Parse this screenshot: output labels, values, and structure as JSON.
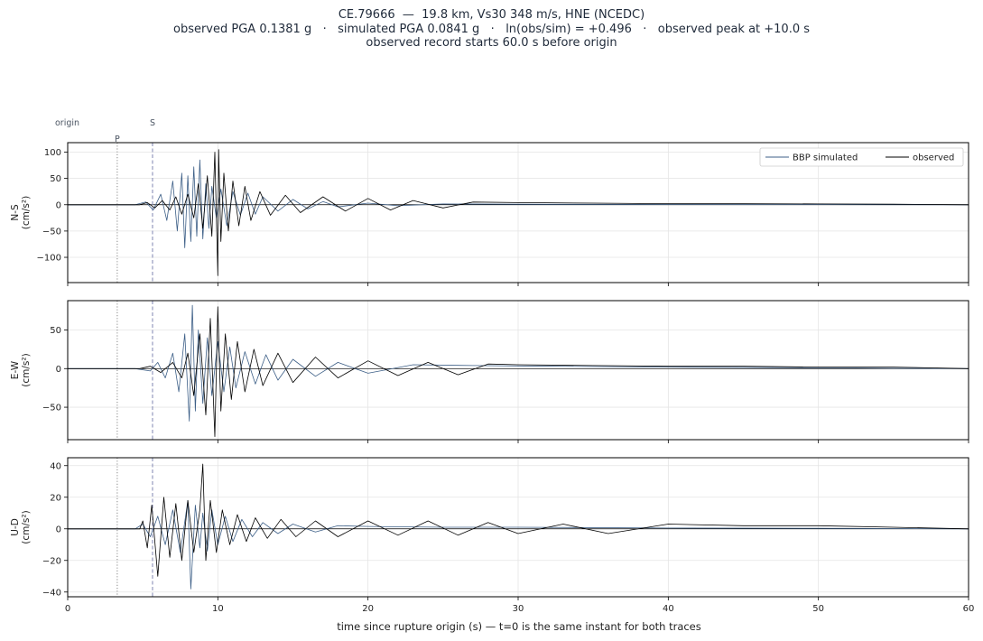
{
  "header": {
    "line1": "CE.79666  —  19.8 km, Vs30 348 m/s, HNE (NCEDC)",
    "line2": "observed PGA 0.1381 g   ·   simulated PGA 0.0841 g   ·   ln(obs/sim) = +0.496   ·   observed peak at +10.0 s",
    "line3": "observed record starts 60.0 s before origin"
  },
  "chart_data": {
    "type": "line",
    "xlabel": "time since rupture origin (s)   —   t=0 is the same instant for both traces",
    "xlim": [
      0,
      60
    ],
    "xticks": [
      0,
      10,
      20,
      30,
      40,
      50,
      60
    ],
    "grid": true,
    "legend": {
      "placement": "top-right",
      "entries": [
        "BBP simulated",
        "observed"
      ]
    },
    "markers": [
      {
        "label": "origin",
        "t": 0
      },
      {
        "label": "P",
        "t": 3.3
      },
      {
        "label": "S",
        "t": 5.65
      }
    ],
    "colors": {
      "simulated": "#3d5f87",
      "observed": "#000000",
      "p_line": "#888888",
      "s_line": "#8a90b8"
    },
    "panels": [
      {
        "component": "N-S",
        "ylabel_line1": "N-S",
        "ylabel_line2": "(cm/s²)",
        "ylim": [
          -148,
          118
        ],
        "yticks": [
          100,
          50,
          0,
          -50,
          -100
        ],
        "series": [
          {
            "name": "BBP simulated",
            "x": [
              0,
              4.5,
              5.2,
              5.7,
              6.2,
              6.6,
              7.0,
              7.3,
              7.6,
              7.8,
              8.0,
              8.2,
              8.4,
              8.6,
              8.8,
              9.0,
              9.2,
              9.4,
              9.6,
              9.9,
              10.2,
              10.6,
              11.0,
              11.5,
              12.0,
              12.5,
              13.0,
              14.0,
              15.0,
              16.0,
              17.0,
              18.0,
              20.0,
              22.0,
              25.0,
              30.0,
              40.0,
              50.0,
              60.0
            ],
            "y": [
              0,
              0,
              5,
              -10,
              20,
              -30,
              45,
              -50,
              60,
              -82,
              55,
              -70,
              72,
              -60,
              85,
              -65,
              40,
              -45,
              35,
              -25,
              30,
              -40,
              25,
              -20,
              22,
              -18,
              15,
              -12,
              10,
              -8,
              6,
              -4,
              3,
              -2,
              1.5,
              1,
              0.5,
              0.3,
              0
            ]
          },
          {
            "name": "observed",
            "x": [
              0,
              4.8,
              5.3,
              5.8,
              6.3,
              6.8,
              7.2,
              7.6,
              8.0,
              8.4,
              8.7,
              9.0,
              9.3,
              9.6,
              9.8,
              10.0,
              10.05,
              10.2,
              10.4,
              10.7,
              11.0,
              11.4,
              11.8,
              12.2,
              12.8,
              13.5,
              14.5,
              15.5,
              17.0,
              18.5,
              20.0,
              21.5,
              23.0,
              25.0,
              27.0,
              30.0,
              35.0,
              40.0,
              45.0,
              50.0,
              55.0,
              60.0
            ],
            "y": [
              0,
              0,
              4,
              -6,
              8,
              -10,
              15,
              -18,
              20,
              -25,
              40,
              -45,
              55,
              -60,
              100,
              -135,
              105,
              -70,
              60,
              -50,
              45,
              -40,
              35,
              -30,
              25,
              -20,
              18,
              -15,
              15,
              -12,
              12,
              -10,
              8,
              -6,
              5,
              4,
              3,
              2,
              2,
              1.5,
              1,
              0
            ]
          }
        ]
      },
      {
        "component": "E-W",
        "ylabel_line1": "E-W",
        "ylabel_line2": "(cm/s²)",
        "ylim": [
          -92,
          88
        ],
        "yticks": [
          50,
          0,
          -50
        ],
        "series": [
          {
            "name": "BBP simulated",
            "x": [
              0,
              4.5,
              5.5,
              6.0,
              6.5,
              7.0,
              7.4,
              7.8,
              8.1,
              8.3,
              8.5,
              8.7,
              9.0,
              9.3,
              9.6,
              10.0,
              10.4,
              10.8,
              11.2,
              11.8,
              12.5,
              13.2,
              14.0,
              15.0,
              16.5,
              18.0,
              20.0,
              23.0,
              27.0,
              32.0,
              40.0,
              50.0,
              60.0
            ],
            "y": [
              0,
              0,
              -3,
              8,
              -12,
              20,
              -30,
              45,
              -68,
              82,
              -55,
              50,
              -45,
              40,
              -35,
              35,
              -30,
              28,
              -25,
              22,
              -20,
              18,
              -15,
              12,
              -10,
              8,
              -6,
              5,
              4,
              3,
              2,
              1,
              0
            ]
          },
          {
            "name": "observed",
            "x": [
              0,
              4.8,
              5.5,
              6.2,
              7.0,
              7.6,
              8.0,
              8.4,
              8.8,
              9.2,
              9.5,
              9.8,
              10.0,
              10.2,
              10.5,
              10.9,
              11.3,
              11.8,
              12.4,
              13.0,
              14.0,
              15.0,
              16.5,
              18.0,
              20.0,
              22.0,
              24.0,
              26.0,
              28.0,
              30.0,
              35.0,
              40.0,
              45.0,
              50.0,
              55.0,
              60.0
            ],
            "y": [
              0,
              0,
              3,
              -5,
              8,
              -12,
              20,
              -35,
              45,
              -60,
              65,
              -88,
              80,
              -55,
              45,
              -40,
              35,
              -30,
              25,
              -22,
              20,
              -18,
              15,
              -12,
              10,
              -9,
              8,
              -8,
              6,
              5,
              4,
              3,
              3,
              2,
              2,
              0
            ]
          }
        ]
      },
      {
        "component": "U-D",
        "ylabel_line1": "U-D",
        "ylabel_line2": "(cm/s²)",
        "ylim": [
          -43,
          45
        ],
        "yticks": [
          40,
          20,
          0,
          -20,
          -40
        ],
        "series": [
          {
            "name": "BBP simulated",
            "x": [
              0,
              4.5,
              5.0,
              5.5,
              6.0,
              6.5,
              7.0,
              7.5,
              8.0,
              8.2,
              8.5,
              8.8,
              9.0,
              9.3,
              9.6,
              10.0,
              10.5,
              11.0,
              11.6,
              12.3,
              13.0,
              14.0,
              15.0,
              16.5,
              18.0,
              20.0,
              25.0,
              30.0,
              40.0,
              50.0,
              60.0
            ],
            "y": [
              0,
              0,
              3,
              -5,
              8,
              -10,
              12,
              -15,
              18,
              -38,
              15,
              -12,
              10,
              -14,
              12,
              -10,
              8,
              -8,
              6,
              -5,
              4,
              -3,
              3,
              -2,
              2,
              1.5,
              1,
              1,
              0.5,
              0.3,
              0
            ]
          },
          {
            "name": "observed",
            "x": [
              0,
              4.8,
              5.0,
              5.3,
              5.6,
              6.0,
              6.4,
              6.8,
              7.2,
              7.6,
              8.0,
              8.4,
              8.8,
              9.0,
              9.2,
              9.5,
              9.9,
              10.3,
              10.8,
              11.3,
              11.9,
              12.5,
              13.3,
              14.2,
              15.2,
              16.5,
              18.0,
              20.0,
              22.0,
              24.0,
              26.0,
              28.0,
              30.0,
              33.0,
              36.0,
              40.0,
              45.0,
              50.0,
              55.0,
              60.0
            ],
            "y": [
              0,
              0,
              5,
              -12,
              15,
              -30,
              20,
              -18,
              16,
              -20,
              18,
              -15,
              12,
              41,
              -20,
              18,
              -15,
              12,
              -10,
              9,
              -8,
              7,
              -6,
              6,
              -5,
              5,
              -5,
              5,
              -4,
              5,
              -4,
              4,
              -3,
              3,
              -3,
              3,
              2,
              2,
              1,
              0
            ]
          }
        ]
      }
    ]
  }
}
